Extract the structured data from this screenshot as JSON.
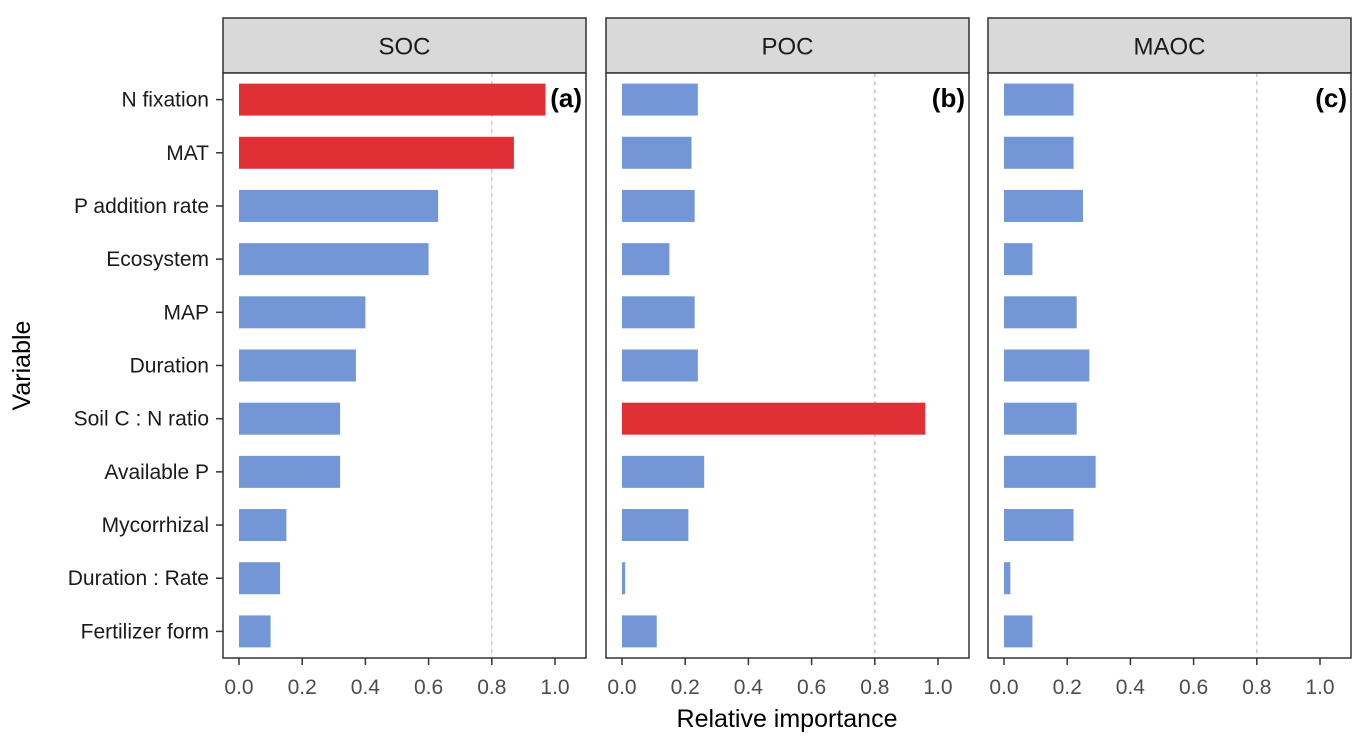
{
  "chart_data": {
    "type": "bar",
    "orientation": "horizontal",
    "xlabel": "Relative importance",
    "ylabel": "Variable",
    "xlim": [
      0,
      1
    ],
    "x_ticks": [
      "0.0",
      "0.2",
      "0.4",
      "0.6",
      "0.8",
      "1.0"
    ],
    "reference_line": 0.8,
    "categories": [
      "N fixation",
      "MAT",
      "P addition rate",
      "Ecosystem",
      "MAP",
      "Duration",
      "Soil C : N ratio",
      "Available P",
      "Mycorrhizal",
      "Duration : Rate",
      "Fertilizer form"
    ],
    "colors": {
      "highlight": "#E03036",
      "default": "#7396D6",
      "strip_fill": "#D9D9D9",
      "reference_line": "#BEBEBE"
    },
    "panels": [
      {
        "strip": "SOC",
        "tag": "(a)",
        "values": [
          0.97,
          0.87,
          0.63,
          0.6,
          0.4,
          0.37,
          0.32,
          0.32,
          0.15,
          0.13,
          0.1
        ],
        "highlight": [
          true,
          true,
          false,
          false,
          false,
          false,
          false,
          false,
          false,
          false,
          false
        ]
      },
      {
        "strip": "POC",
        "tag": "(b)",
        "values": [
          0.24,
          0.22,
          0.23,
          0.15,
          0.23,
          0.24,
          0.96,
          0.26,
          0.21,
          0.01,
          0.11
        ],
        "highlight": [
          false,
          false,
          false,
          false,
          false,
          false,
          true,
          false,
          false,
          false,
          false
        ]
      },
      {
        "strip": "MAOC",
        "tag": "(c)",
        "values": [
          0.22,
          0.22,
          0.25,
          0.09,
          0.23,
          0.27,
          0.23,
          0.29,
          0.22,
          0.02,
          0.09
        ],
        "highlight": [
          false,
          false,
          false,
          false,
          false,
          false,
          false,
          false,
          false,
          false,
          false
        ]
      }
    ]
  }
}
